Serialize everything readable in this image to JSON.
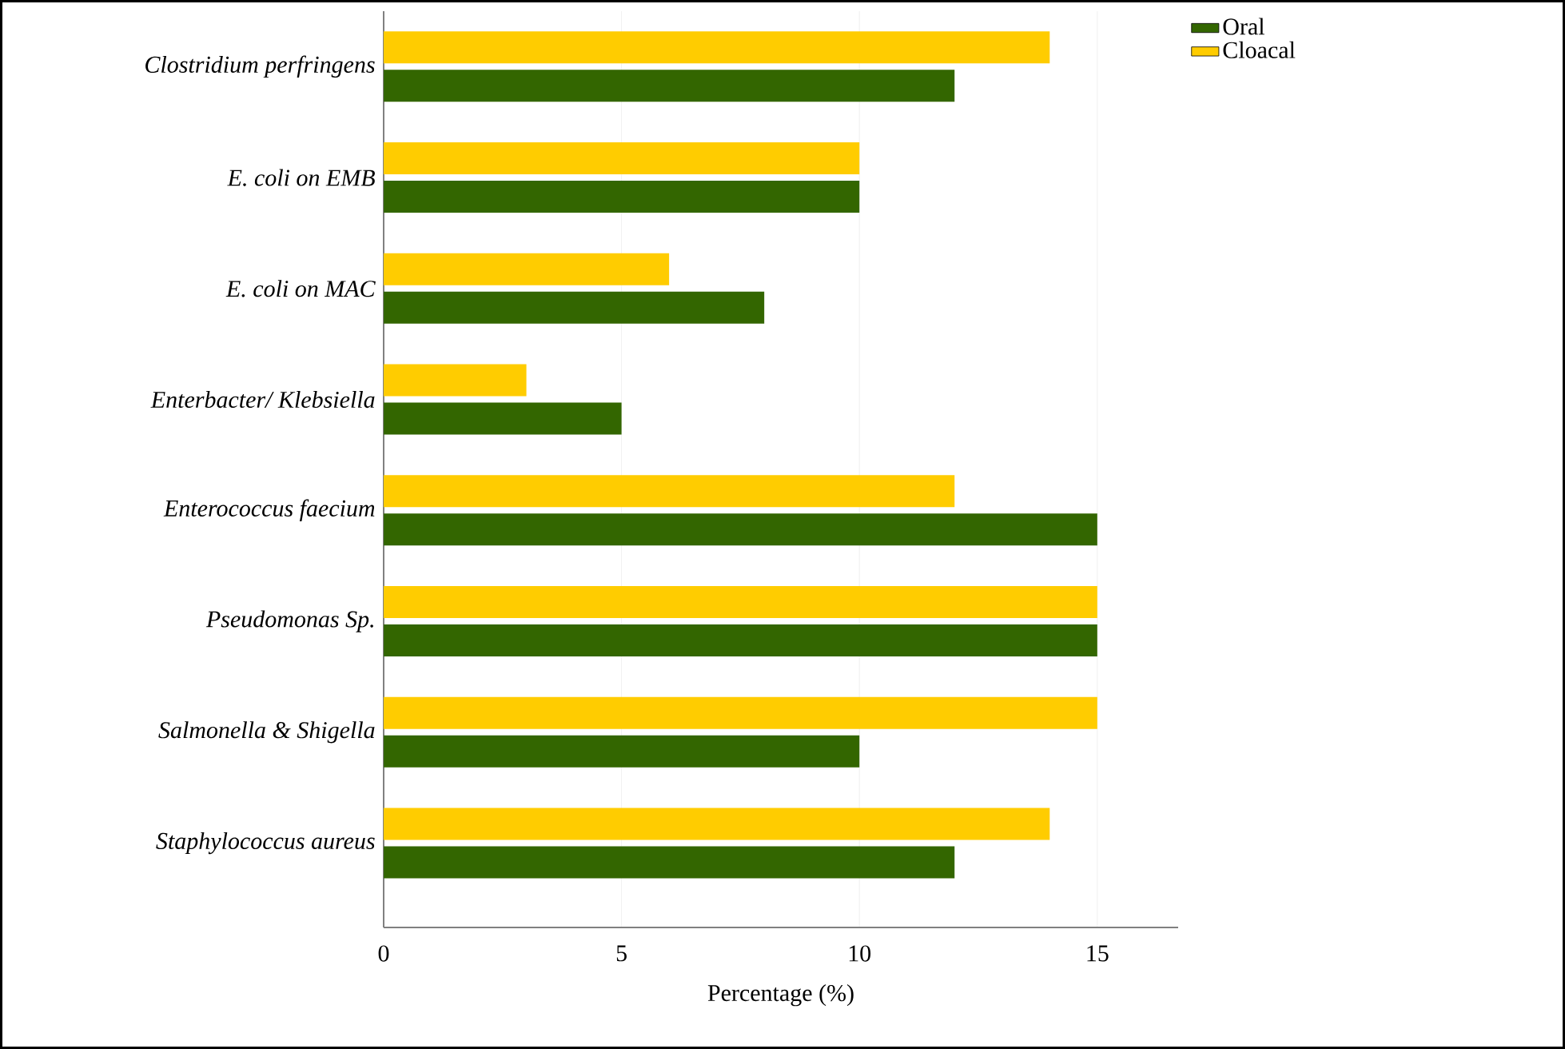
{
  "chart_data": {
    "type": "bar",
    "orientation": "horizontal",
    "xlabel": "Percentage (%)",
    "categories": [
      "Clostridium perfringens",
      "E. coli on EMB",
      "E. coli on MAC",
      "Enterbacter/ Klebsiella",
      "Enterococcus faecium",
      "Pseudomonas Sp.",
      "Salmonella & Shigella",
      "Staphylococcus aureus"
    ],
    "series": [
      {
        "name": "Oral",
        "color": "#336600",
        "values": [
          12,
          10,
          8,
          5,
          15,
          15,
          10,
          12
        ]
      },
      {
        "name": "Cloacal",
        "color": "#ffcc00",
        "values": [
          14,
          10,
          6,
          3,
          12,
          15,
          15,
          14
        ]
      }
    ],
    "xlim": [
      0,
      16.7
    ],
    "xticks": [
      0,
      5,
      10,
      15
    ],
    "grid": "x",
    "legend": "top right"
  }
}
